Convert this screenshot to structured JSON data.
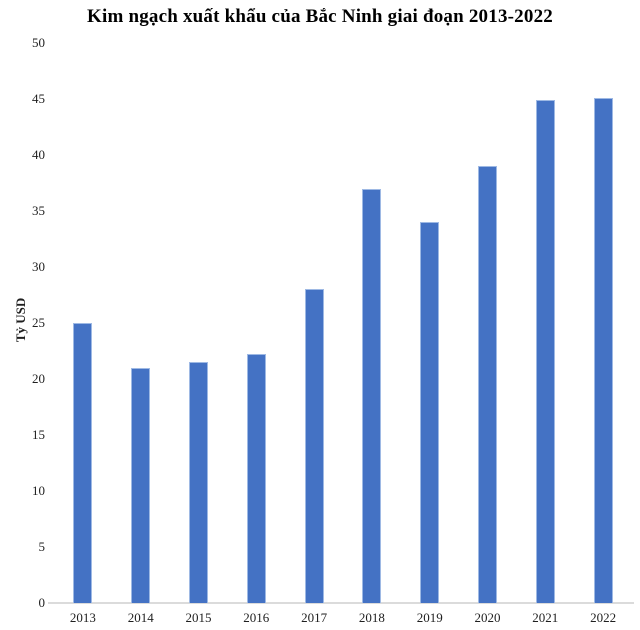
{
  "chart_data": {
    "type": "bar",
    "title": "Kim ngạch xuất khẩu của Bắc Ninh giai đoạn 2013-2022",
    "xlabel": "",
    "ylabel": "Tỷ USD",
    "categories": [
      "2013",
      "2014",
      "2015",
      "2016",
      "2017",
      "2018",
      "2019",
      "2020",
      "2021",
      "2022"
    ],
    "values": [
      25,
      21,
      21.5,
      22.2,
      28,
      37,
      34,
      39,
      44.9,
      45.1
    ],
    "ylim": [
      0,
      50
    ],
    "ytick_step": 5,
    "y_tick_labels": [
      "0",
      "5",
      "10",
      "15",
      "20",
      "25",
      "30",
      "35",
      "40",
      "45",
      "50"
    ],
    "grid": false,
    "legend": false,
    "colors": {
      "bar_fill": "#4472C4",
      "bar_border": "#9EB9E4",
      "axis_line": "#DBDBDB",
      "text": "#1f1f1f",
      "title_text": "#000000",
      "background": "#FFFFFF"
    }
  }
}
